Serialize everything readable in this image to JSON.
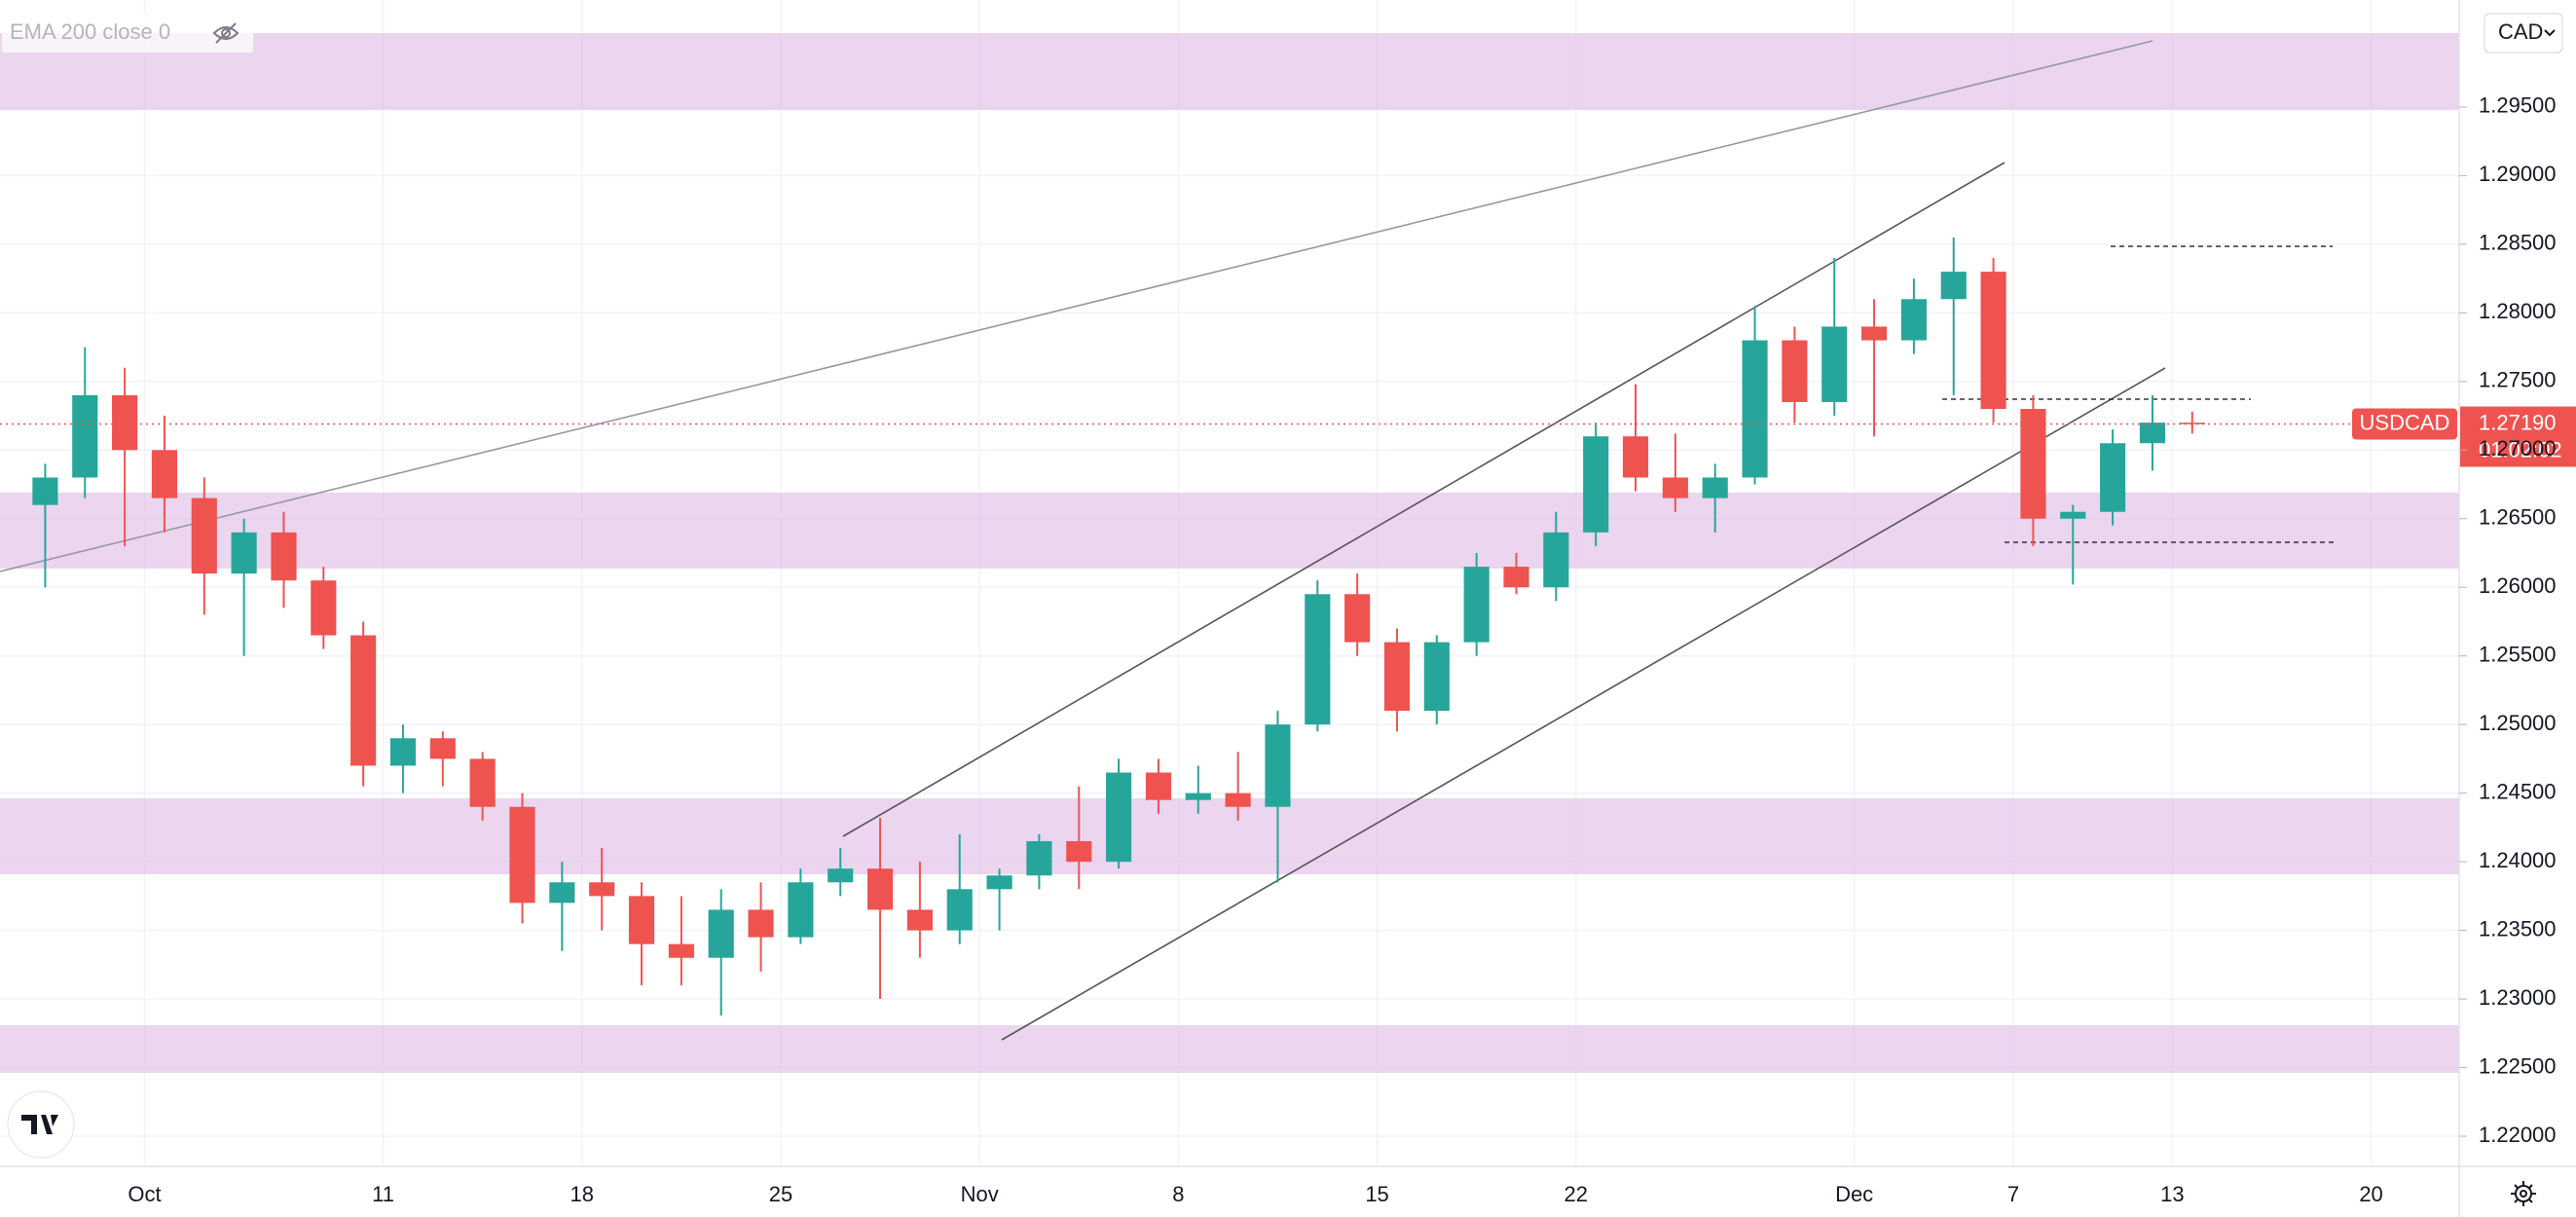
{
  "chart_data": {
    "type": "candlestick",
    "indicator": "EMA 200 close 0",
    "currency": "CAD",
    "categories": [
      null,
      null,
      null,
      "Oct",
      null,
      null,
      null,
      null,
      null,
      "11",
      null,
      null,
      null,
      null,
      "18",
      null,
      null,
      null,
      null,
      "25",
      null,
      null,
      null,
      null,
      "Nov",
      null,
      null,
      null,
      null,
      "8",
      null,
      null,
      null,
      null,
      "15",
      null,
      null,
      null,
      null,
      "22",
      null,
      null,
      null,
      null,
      null,
      null,
      "Dec",
      null,
      null,
      null,
      "7",
      null,
      null,
      null,
      "13",
      null,
      null,
      null,
      null,
      "20"
    ],
    "series": [
      {
        "name": "USDCAD",
        "up_color": "#26a69a",
        "down_color": "#ef5350",
        "open": [
          1.266,
          1.268,
          1.274,
          1.27,
          1.2665,
          1.261,
          1.264,
          1.2605,
          1.2565,
          1.247,
          1.249,
          1.2475,
          1.244,
          1.237,
          1.2385,
          1.2375,
          1.234,
          1.233,
          1.2365,
          1.2345,
          1.2385,
          1.2395,
          1.2365,
          1.235,
          1.238,
          1.239,
          1.2415,
          1.24,
          1.2465,
          1.2445,
          1.245,
          1.244,
          1.25,
          1.2595,
          1.256,
          1.251,
          1.256,
          1.2615,
          1.26,
          1.264,
          1.271,
          1.268,
          1.2665,
          1.268,
          1.278,
          1.2735,
          1.279,
          1.278,
          1.281,
          1.283,
          1.273,
          1.265,
          1.2655,
          1.2705,
          1.272,
          null,
          null,
          null,
          null,
          null
        ],
        "high": [
          1.269,
          1.2775,
          1.276,
          1.2725,
          1.268,
          1.265,
          1.2655,
          1.2615,
          1.2575,
          1.25,
          1.2495,
          1.248,
          1.245,
          1.24,
          1.241,
          1.2385,
          1.2375,
          1.238,
          1.2385,
          1.2395,
          1.241,
          1.2432,
          1.24,
          1.242,
          1.2395,
          1.242,
          1.2455,
          1.2475,
          1.2475,
          1.247,
          1.248,
          1.251,
          1.2605,
          1.261,
          1.257,
          1.2565,
          1.2625,
          1.2625,
          1.2655,
          1.272,
          1.2748,
          1.2712,
          1.269,
          1.2805,
          1.279,
          1.284,
          1.281,
          1.2825,
          1.2855,
          1.284,
          1.274,
          1.266,
          1.2715,
          1.274,
          1.2728,
          null,
          null,
          null,
          null,
          null
        ],
        "low": [
          1.26,
          1.2665,
          1.263,
          1.264,
          1.258,
          1.255,
          1.2585,
          1.2555,
          1.2455,
          1.245,
          1.2455,
          1.243,
          1.2355,
          1.2335,
          1.235,
          1.231,
          1.231,
          1.2288,
          1.232,
          1.234,
          1.2375,
          1.23,
          1.233,
          1.234,
          1.235,
          1.238,
          1.238,
          1.2395,
          1.2435,
          1.2435,
          1.243,
          1.2385,
          1.2495,
          1.255,
          1.2495,
          1.25,
          1.255,
          1.2595,
          1.259,
          1.263,
          1.267,
          1.2655,
          1.264,
          1.2675,
          1.272,
          1.2725,
          1.271,
          1.277,
          1.274,
          1.272,
          1.263,
          1.2602,
          1.2645,
          1.2685,
          1.2712,
          null,
          null,
          null,
          null,
          null
        ],
        "close": [
          1.268,
          1.274,
          1.27,
          1.2665,
          1.261,
          1.264,
          1.2605,
          1.2565,
          1.247,
          1.249,
          1.2475,
          1.244,
          1.237,
          1.2385,
          1.2375,
          1.234,
          1.233,
          1.2365,
          1.2345,
          1.2385,
          1.2395,
          1.2365,
          1.235,
          1.238,
          1.239,
          1.2415,
          1.24,
          1.2465,
          1.2445,
          1.245,
          1.244,
          1.25,
          1.2595,
          1.256,
          1.251,
          1.256,
          1.2615,
          1.26,
          1.264,
          1.271,
          1.268,
          1.2665,
          1.268,
          1.278,
          1.2735,
          1.279,
          1.278,
          1.281,
          1.283,
          1.273,
          1.265,
          1.2655,
          1.2705,
          1.272,
          1.2719,
          null,
          null,
          null,
          null,
          null
        ]
      }
    ],
    "last_price": {
      "value": 1.2719,
      "label": "1.27190"
    },
    "countdown": "01:02:02",
    "ylim": [
      1.2178,
      1.3028
    ],
    "yticks": [
      {
        "value": 1.22,
        "label": "1.22000"
      },
      {
        "value": 1.225,
        "label": "1.22500"
      },
      {
        "value": 1.23,
        "label": "1.23000"
      },
      {
        "value": 1.235,
        "label": "1.23500"
      },
      {
        "value": 1.24,
        "label": "1.24000"
      },
      {
        "value": 1.245,
        "label": "1.24500"
      },
      {
        "value": 1.25,
        "label": "1.25000"
      },
      {
        "value": 1.255,
        "label": "1.25500"
      },
      {
        "value": 1.26,
        "label": "1.26000"
      },
      {
        "value": 1.265,
        "label": "1.26500"
      },
      {
        "value": 1.27,
        "label": "1.27000"
      },
      {
        "value": 1.275,
        "label": "1.27500"
      },
      {
        "value": 1.28,
        "label": "1.28000"
      },
      {
        "value": 1.285,
        "label": "1.28500"
      },
      {
        "value": 1.29,
        "label": "1.29000"
      },
      {
        "value": 1.295,
        "label": "1.29500"
      }
    ],
    "grid": true
  }
}
